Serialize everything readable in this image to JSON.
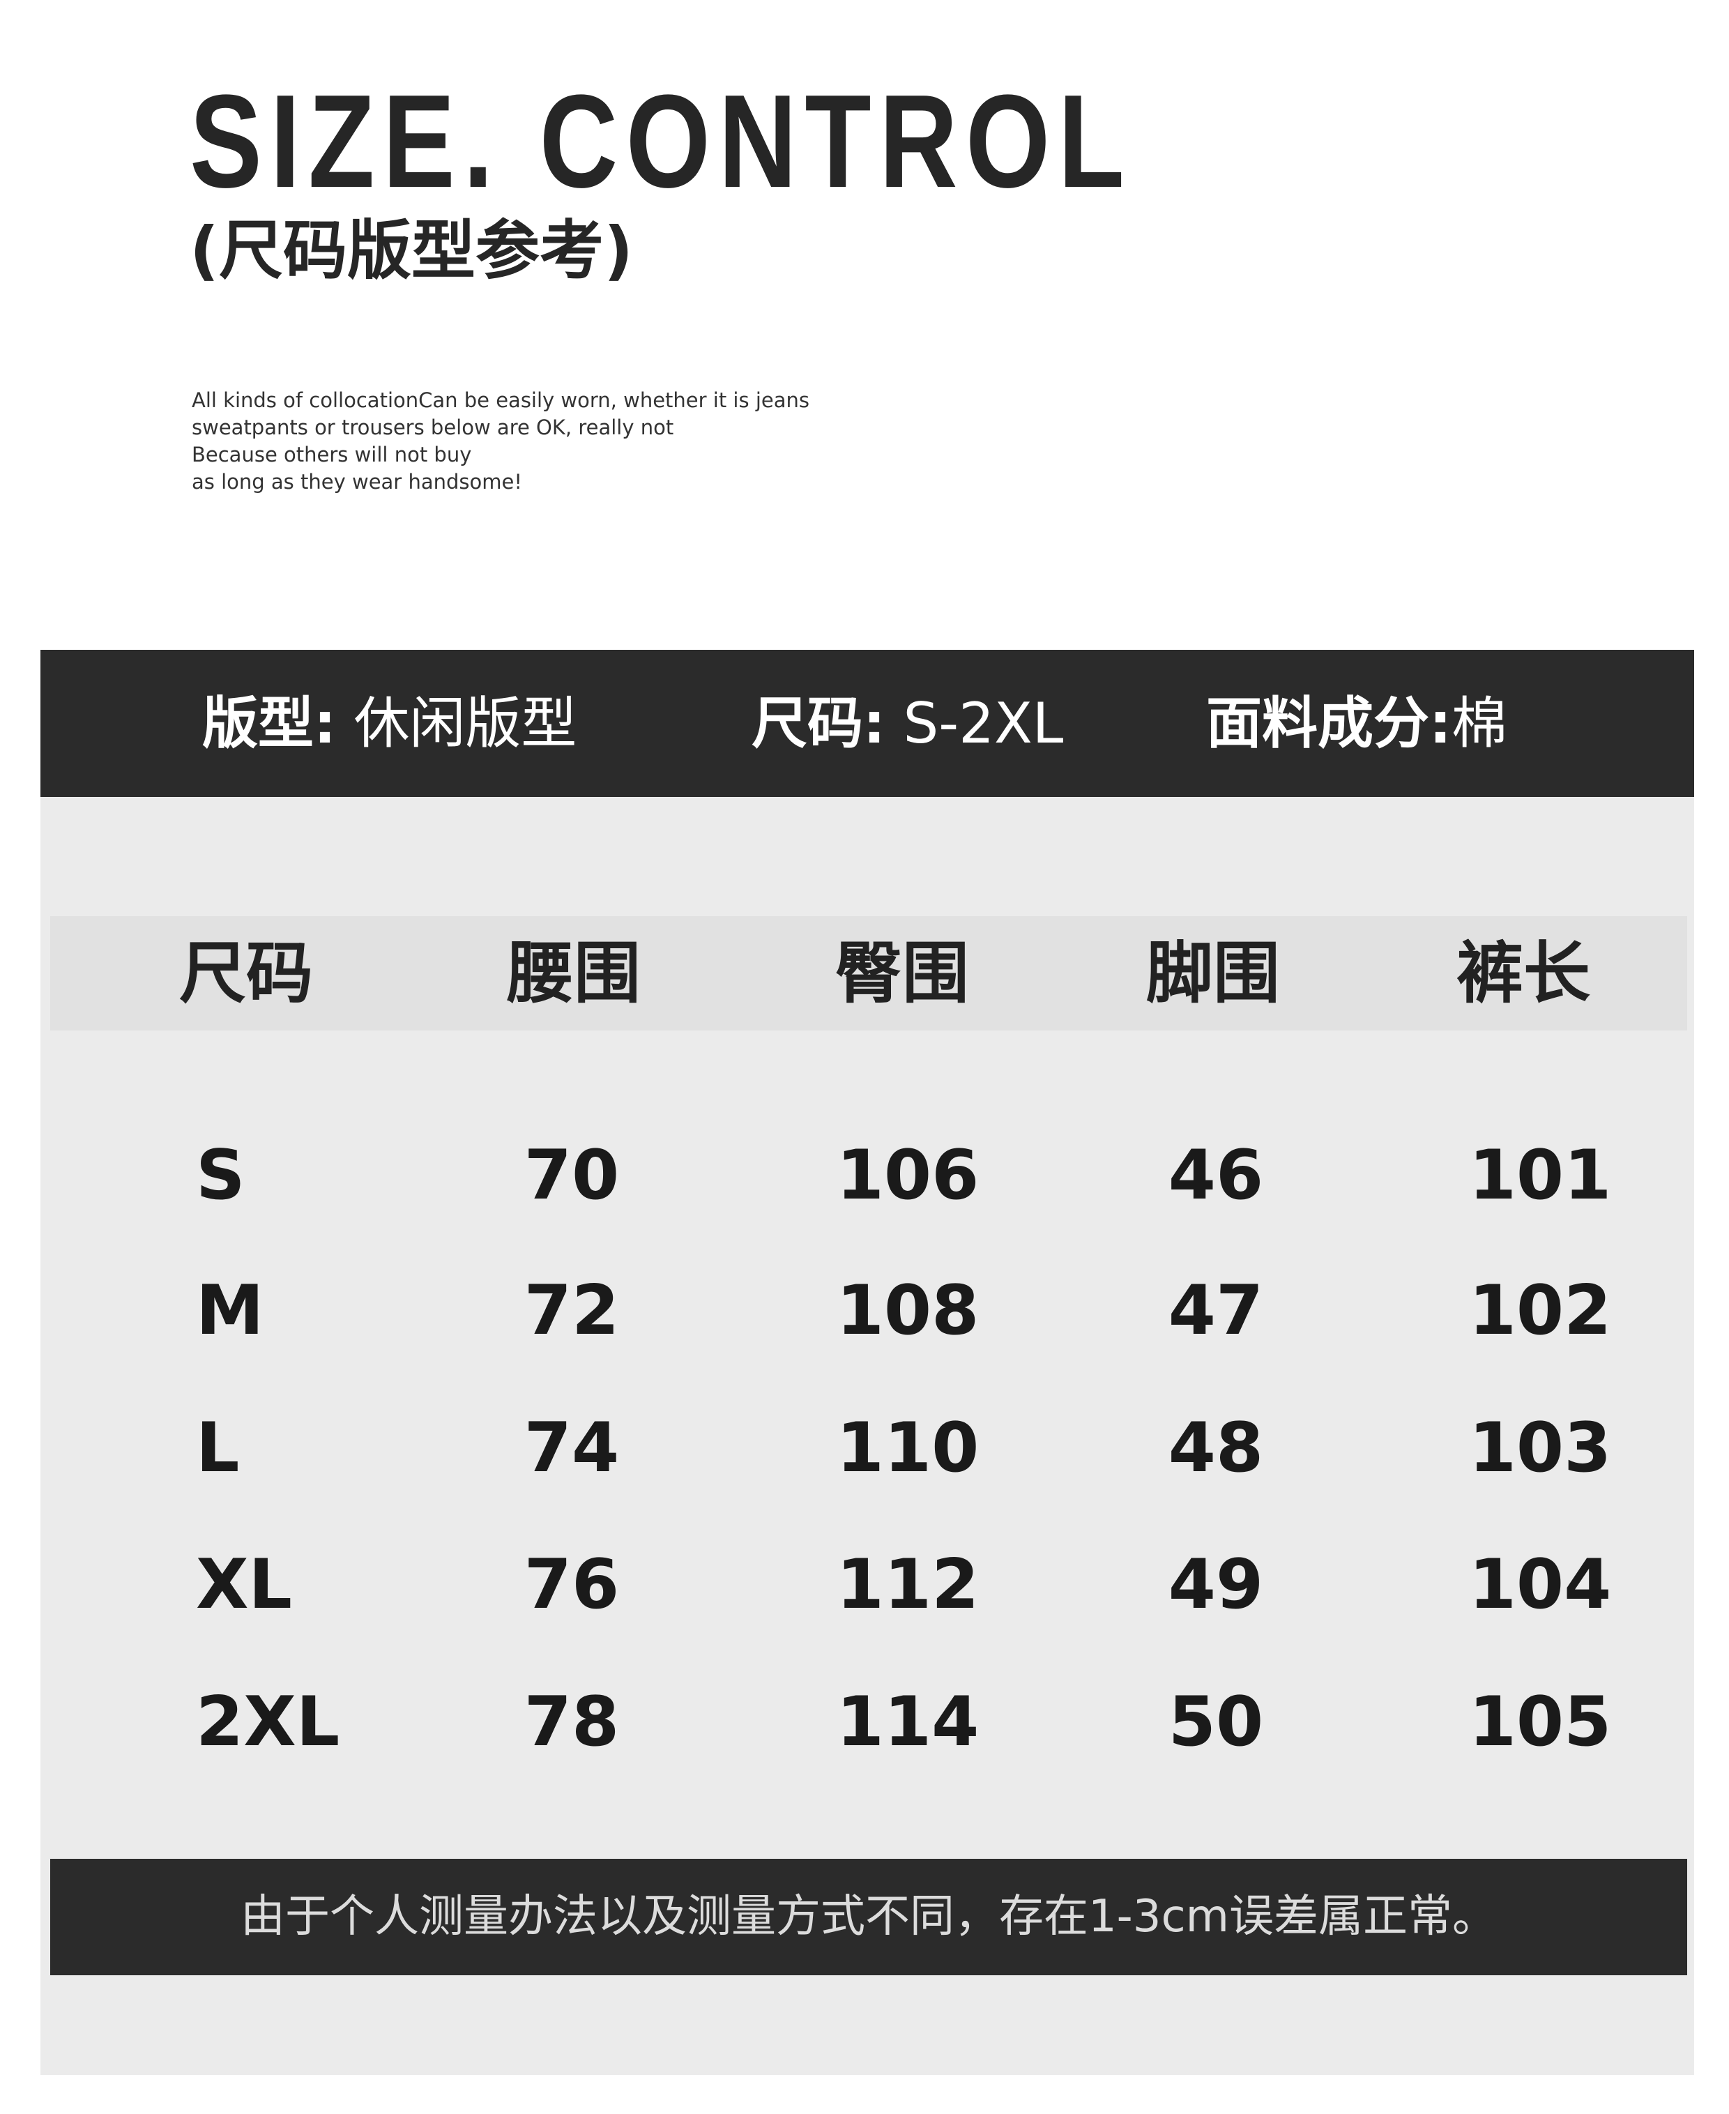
{
  "header": {
    "title": "SIZE. CONTROL",
    "subtitle": "(尺码版型参考)",
    "description": [
      "All kinds of collocationCan be easily worn, whether it is jeans",
      "sweatpants or trousers below are OK, really not",
      "Because others will not buy",
      "as long as they wear handsome!"
    ]
  },
  "info_bar": {
    "fit_label": "版型:",
    "fit_value": "休闲版型",
    "size_label": "尺码:",
    "size_value": "S-2XL",
    "fabric_label": "面料成分:",
    "fabric_value": "棉"
  },
  "table": {
    "columns": [
      "尺码",
      "腰围",
      "臀围",
      "脚围",
      "裤长"
    ],
    "rows": [
      [
        "S",
        "70",
        "106",
        "46",
        "101"
      ],
      [
        "M",
        "72",
        "108",
        "47",
        "102"
      ],
      [
        "L",
        "74",
        "110",
        "48",
        "103"
      ],
      [
        "XL",
        "76",
        "112",
        "49",
        "104"
      ],
      [
        "2XL",
        "78",
        "114",
        "50",
        "105"
      ]
    ]
  },
  "footer": {
    "note": "由于个人测量办法以及测量方式不同，存在1-3cm误差属正常。"
  },
  "colors": {
    "dark_bar": "#2b2b2b",
    "panel": "#ebebeb",
    "header_row": "#e1e1e1",
    "text": "#222222"
  }
}
